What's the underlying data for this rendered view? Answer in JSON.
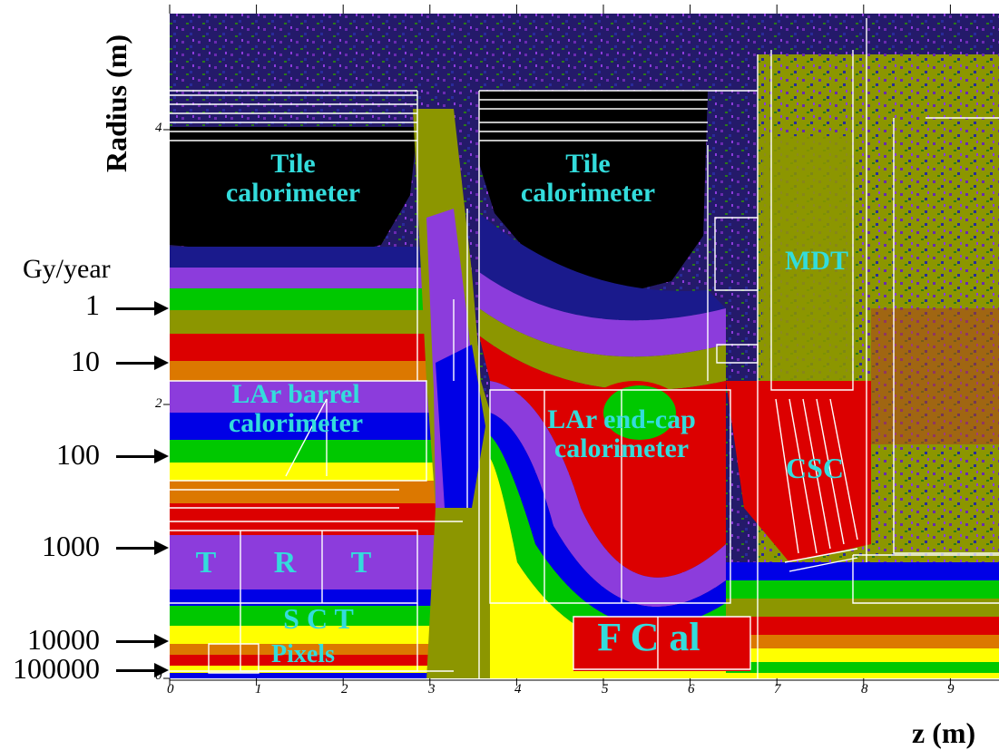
{
  "axes": {
    "y_label": "Radius (m)",
    "x_label": "z (m)",
    "x_ticks": [
      "0",
      "1",
      "2",
      "3",
      "4",
      "5",
      "6",
      "7",
      "8",
      "9"
    ],
    "y_ticks": [
      "0",
      "2",
      "4"
    ]
  },
  "dose_scale": {
    "unit": "Gy/year",
    "levels": [
      "1",
      "10",
      "100",
      "1000",
      "10000",
      "100000"
    ]
  },
  "regions": {
    "tile_left": "Tile\ncalorimeter",
    "tile_right": "Tile\ncalorimeter",
    "mdt": "MDT",
    "lar_barrel": "LAr barrel\ncalorimeter",
    "lar_endcap": "LAr end-cap\ncalorimeter",
    "csc": "CSC",
    "trt_t1": "T",
    "trt_r": "R",
    "trt_t2": "T",
    "sct": "S C T",
    "pixels": "Pixels",
    "fcal": "F C al"
  },
  "colors": {
    "black": "#000000",
    "navy": "#1a1a8c",
    "purple": "#8c3cdc",
    "blue": "#0000e6",
    "green": "#00c800",
    "olive": "#8c9600",
    "yellow": "#ffff00",
    "orange": "#dc7800",
    "red": "#dc0000",
    "label": "#33dcdc"
  }
}
